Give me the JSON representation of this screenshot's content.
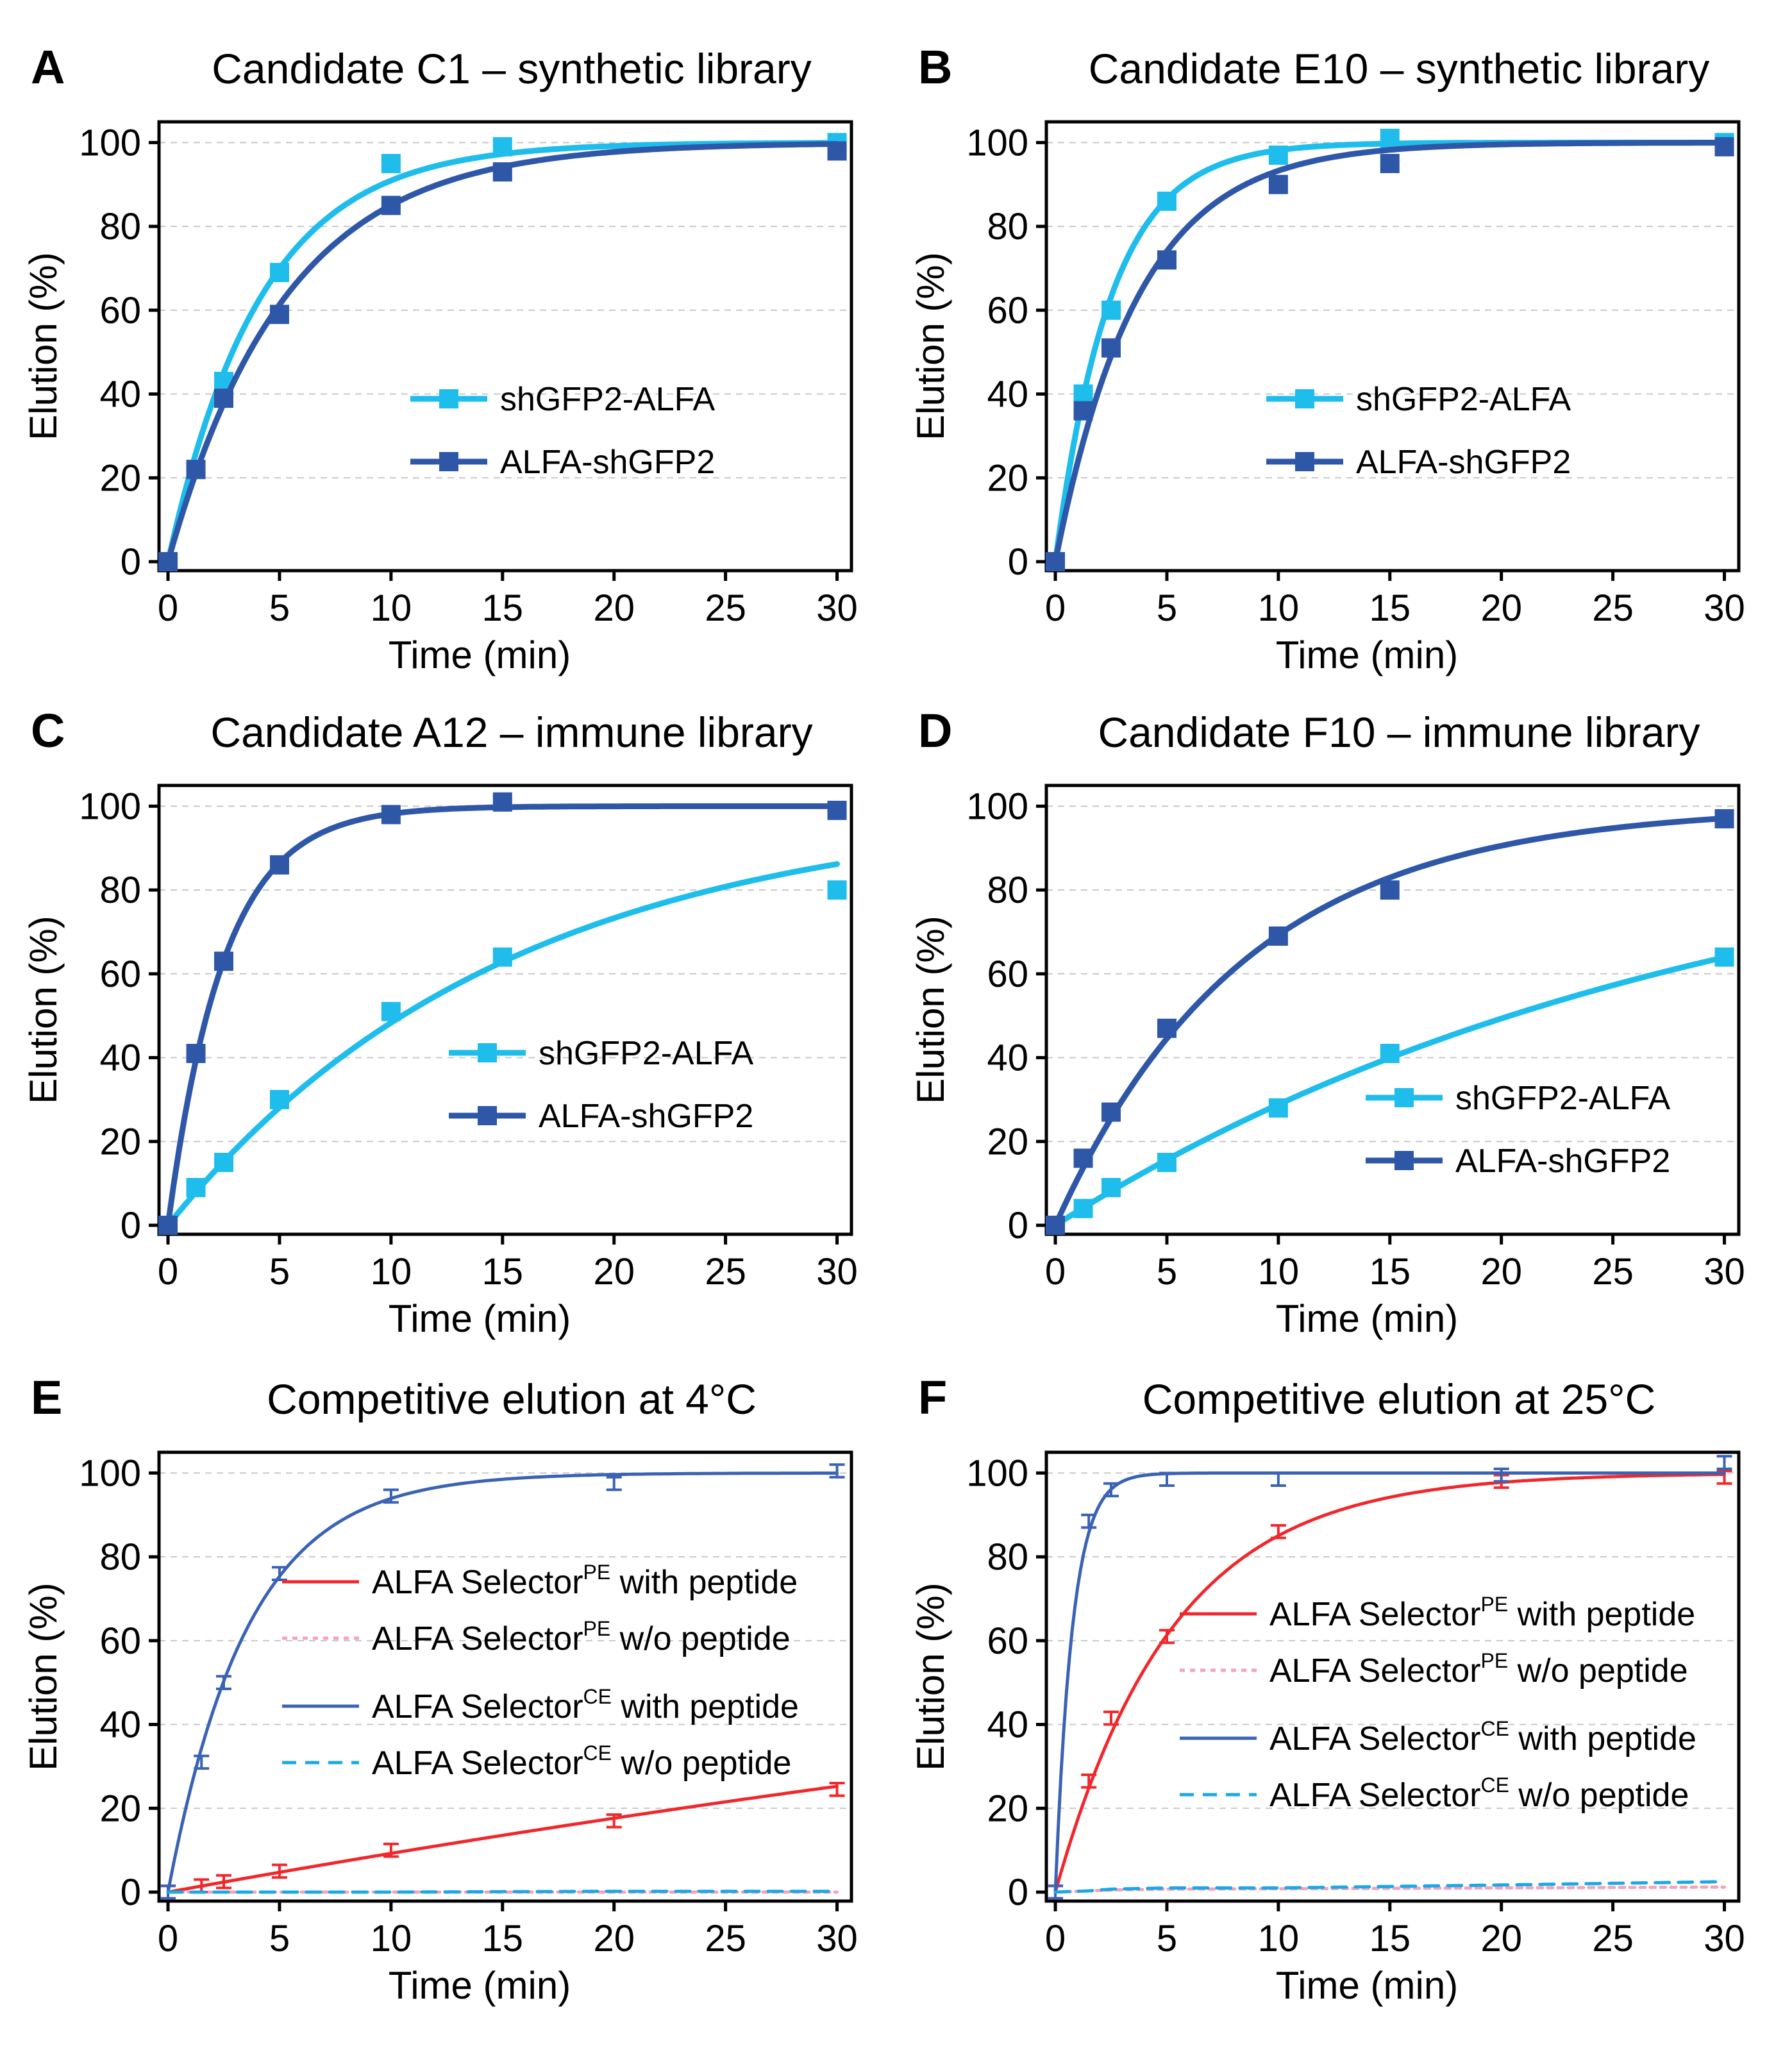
{
  "colors": {
    "light_blue": "#1EBDEB",
    "dark_blue": "#2E57A8",
    "medium_blue": "#3A62B5",
    "red": "#F0282C",
    "pink": "#F5A3B8",
    "cyan_dash": "#1AA8E6"
  },
  "chart_data": [
    {
      "id": "A",
      "letter": "A",
      "type": "line",
      "title": "Candidate C1 – synthetic library",
      "xlabel": "Time (min)",
      "ylabel": "Elution (%)",
      "xlim": [
        0,
        30
      ],
      "ylim": [
        0,
        100
      ],
      "xticks": [
        0,
        5,
        10,
        15,
        20,
        25,
        30
      ],
      "yticks": [
        0,
        20,
        40,
        60,
        80,
        100
      ],
      "grid": true,
      "legend_position": "center-right",
      "series": [
        {
          "name": "shGFP2-ALFA",
          "color": "#1EBDEB",
          "marker": "square",
          "line": "solid",
          "x": [
            0,
            1.25,
            2.5,
            5,
            10,
            15,
            30
          ],
          "y": [
            0,
            22,
            43,
            69,
            95,
            99,
            100
          ],
          "fit_k": 0.24
        },
        {
          "name": "ALFA-shGFP2",
          "color": "#2E57A8",
          "marker": "square",
          "line": "solid",
          "x": [
            0,
            1.25,
            2.5,
            5,
            10,
            15,
            30
          ],
          "y": [
            0,
            22,
            39,
            59,
            85,
            93,
            98
          ],
          "fit_k": 0.19
        }
      ]
    },
    {
      "id": "B",
      "letter": "B",
      "type": "line",
      "title": "Candidate E10 – synthetic library",
      "xlabel": "Time (min)",
      "ylabel": "Elution (%)",
      "xlim": [
        0,
        30
      ],
      "ylim": [
        0,
        100
      ],
      "xticks": [
        0,
        5,
        10,
        15,
        20,
        25,
        30
      ],
      "yticks": [
        0,
        20,
        40,
        60,
        80,
        100
      ],
      "grid": true,
      "legend_position": "center-right",
      "series": [
        {
          "name": "shGFP2-ALFA",
          "color": "#1EBDEB",
          "marker": "square",
          "line": "solid",
          "x": [
            0,
            1.25,
            2.5,
            5,
            10,
            15,
            30
          ],
          "y": [
            0,
            40,
            60,
            86,
            97,
            101,
            100
          ],
          "fit_k": 0.4
        },
        {
          "name": "ALFA-shGFP2",
          "color": "#2E57A8",
          "marker": "square",
          "line": "solid",
          "x": [
            0,
            1.25,
            2.5,
            5,
            10,
            15,
            30
          ],
          "y": [
            0,
            36,
            51,
            72,
            90,
            95,
            99
          ],
          "fit_k": 0.27
        }
      ]
    },
    {
      "id": "C",
      "letter": "C",
      "type": "line",
      "title": "Candidate A12 – immune library",
      "xlabel": "Time (min)",
      "ylabel": "Elution (%)",
      "xlim": [
        0,
        30
      ],
      "ylim": [
        0,
        100
      ],
      "xticks": [
        0,
        5,
        10,
        15,
        20,
        25,
        30
      ],
      "yticks": [
        0,
        20,
        40,
        60,
        80,
        100
      ],
      "grid": true,
      "legend_position": "center-right",
      "series": [
        {
          "name": "shGFP2-ALFA",
          "color": "#1EBDEB",
          "marker": "square",
          "line": "solid",
          "x": [
            0,
            1.25,
            2.5,
            5,
            10,
            15,
            30
          ],
          "y": [
            0,
            9,
            15,
            30,
            51,
            64,
            80
          ],
          "fit_k": 0.066
        },
        {
          "name": "ALFA-shGFP2",
          "color": "#2E57A8",
          "marker": "square",
          "line": "solid",
          "x": [
            0,
            1.25,
            2.5,
            5,
            10,
            15,
            30
          ],
          "y": [
            0,
            41,
            63,
            86,
            98,
            101,
            99
          ],
          "fit_k": 0.4
        }
      ]
    },
    {
      "id": "D",
      "letter": "D",
      "type": "line",
      "title": "Candidate F10 – immune library",
      "xlabel": "Time (min)",
      "ylabel": "Elution (%)",
      "xlim": [
        0,
        30
      ],
      "ylim": [
        0,
        100
      ],
      "xticks": [
        0,
        5,
        10,
        15,
        20,
        25,
        30
      ],
      "yticks": [
        0,
        20,
        40,
        60,
        80,
        100
      ],
      "grid": true,
      "legend_position": "bottom-right",
      "series": [
        {
          "name": "shGFP2-ALFA",
          "color": "#1EBDEB",
          "marker": "square",
          "line": "solid",
          "x": [
            0,
            1.25,
            2.5,
            5,
            10,
            15,
            30
          ],
          "y": [
            0,
            4,
            9,
            15,
            28,
            41,
            64
          ],
          "fit_k": 0.034
        },
        {
          "name": "ALFA-shGFP2",
          "color": "#2E57A8",
          "marker": "square",
          "line": "solid",
          "x": [
            0,
            1.25,
            2.5,
            5,
            10,
            15,
            30
          ],
          "y": [
            0,
            16,
            27,
            47,
            69,
            80,
            97
          ],
          "fit_k": 0.118
        }
      ]
    },
    {
      "id": "E",
      "letter": "E",
      "type": "line",
      "title": "Competitive elution at 4°C",
      "xlabel": "Time (min)",
      "ylabel": "Elution (%)",
      "xlim": [
        0,
        30
      ],
      "ylim": [
        0,
        100
      ],
      "xticks": [
        0,
        5,
        10,
        15,
        20,
        25,
        30
      ],
      "yticks": [
        0,
        20,
        40,
        60,
        80,
        100
      ],
      "grid": true,
      "legend_position": "center-right",
      "series": [
        {
          "name": "ALFA Selector",
          "sup": "PE",
          "suffix": " with peptide",
          "color": "#F0282C",
          "marker": "errorbar",
          "line": "solid",
          "x": [
            0,
            1.5,
            2.5,
            5,
            10,
            20,
            30
          ],
          "y": [
            0,
            1.5,
            2.5,
            5,
            10,
            17,
            24.5
          ],
          "fit_k": 0.0097
        },
        {
          "name": "ALFA Selector",
          "sup": "PE",
          "suffix": " w/o peptide",
          "color": "#F5A3B8",
          "marker": "errorbar",
          "line": "dotted",
          "x": [
            0,
            1.5,
            2.5,
            5,
            10,
            20,
            30
          ],
          "y": [
            0,
            0,
            0,
            0,
            0,
            0,
            0
          ],
          "fit_k": 0
        },
        {
          "name": "ALFA Selector",
          "sup": "CE",
          "suffix": " with peptide",
          "color": "#3A62B5",
          "marker": "errorbar",
          "line": "solid",
          "x": [
            0,
            1.5,
            2.5,
            5,
            10,
            20,
            30
          ],
          "y": [
            0,
            31,
            50,
            76,
            94.5,
            97.5,
            100.5
          ],
          "fit_k": 0.28
        },
        {
          "name": "ALFA Selector",
          "sup": "CE",
          "suffix": " w/o peptide",
          "color": "#1AA8E6",
          "marker": "errorbar",
          "line": "dashed",
          "x": [
            0,
            1.5,
            2.5,
            5,
            10,
            20,
            30
          ],
          "y": [
            0,
            0,
            0,
            0,
            0,
            0.2,
            0.2
          ],
          "fit_k": 0
        }
      ]
    },
    {
      "id": "F",
      "letter": "F",
      "type": "line",
      "title": "Competitive elution at 25°C",
      "xlabel": "Time (min)",
      "ylabel": "Elution (%)",
      "xlim": [
        0,
        30
      ],
      "ylim": [
        0,
        100
      ],
      "xticks": [
        0,
        5,
        10,
        15,
        20,
        25,
        30
      ],
      "yticks": [
        0,
        20,
        40,
        60,
        80,
        100
      ],
      "grid": true,
      "legend_position": "center-right",
      "series": [
        {
          "name": "ALFA Selector",
          "sup": "PE",
          "suffix": " with peptide",
          "color": "#F0282C",
          "marker": "errorbar",
          "line": "solid",
          "x": [
            0,
            1.5,
            2.5,
            5,
            10,
            20,
            30
          ],
          "y": [
            0,
            26.5,
            41.5,
            61,
            86,
            98,
            99
          ],
          "fit_k": 0.19
        },
        {
          "name": "ALFA Selector",
          "sup": "PE",
          "suffix": " w/o peptide",
          "color": "#F5A3B8",
          "marker": "errorbar",
          "line": "dotted",
          "x": [
            0,
            1.5,
            2.5,
            5,
            10,
            20,
            30
          ],
          "y": [
            0,
            0.3,
            0.5,
            0.7,
            0.8,
            1,
            1.2
          ],
          "fit_k": 0
        },
        {
          "name": "ALFA Selector",
          "sup": "CE",
          "suffix": " with peptide",
          "color": "#3A62B5",
          "marker": "errorbar",
          "line": "solid",
          "x": [
            0,
            1.5,
            2.5,
            5,
            10,
            20,
            30
          ],
          "y": [
            0,
            88.5,
            96,
            98.5,
            98.5,
            99.5,
            102.5
          ],
          "fit_k": 1.3
        },
        {
          "name": "ALFA Selector",
          "sup": "CE",
          "suffix": " w/o peptide",
          "color": "#1AA8E6",
          "marker": "errorbar",
          "line": "dashed",
          "x": [
            0,
            1.5,
            2.5,
            5,
            10,
            20,
            30
          ],
          "y": [
            0,
            0.3,
            0.7,
            1,
            1,
            1.7,
            2.5
          ],
          "fit_k": 0
        }
      ]
    }
  ]
}
